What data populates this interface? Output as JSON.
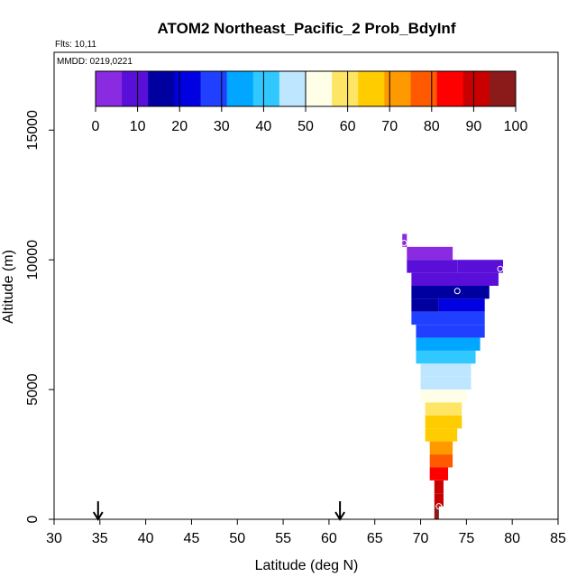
{
  "chart_data": {
    "type": "heatmap",
    "title": "ATOM2 Northeast_Pacific_2 Prob_BdyInf",
    "flights_text": "Flts: 10,11",
    "mmdd_text": "MMDD: 0219,0221",
    "xlabel": "Latitude (deg N)",
    "ylabel": "Altitude (m)",
    "xlim": [
      30,
      85
    ],
    "ylim": [
      0,
      18000
    ],
    "x_ticks": [
      "30",
      "35",
      "40",
      "45",
      "50",
      "55",
      "60",
      "65",
      "70",
      "75",
      "80",
      "85"
    ],
    "y_ticks": [
      "0",
      "5000",
      "10000",
      "15000"
    ],
    "colorbar": {
      "range": [
        0,
        100
      ],
      "ticks": [
        "0",
        "10",
        "20",
        "30",
        "40",
        "50",
        "60",
        "70",
        "80",
        "90",
        "100"
      ],
      "colors": [
        "#8a2be2",
        "#5a0fd8",
        "#0000a0",
        "#0000e0",
        "#2040ff",
        "#00a6ff",
        "#30c8ff",
        "#bfe6ff",
        "#ffffe8",
        "#ffe566",
        "#ffcc00",
        "#ff9900",
        "#ff5a00",
        "#ff0000",
        "#c80000",
        "#8b1a1a"
      ]
    },
    "flight_markers_lat": [
      34.8,
      61.2
    ],
    "cell_width_deg": 0.5,
    "cell_height_m": 500,
    "rows": [
      {
        "alt": 10750,
        "segments": [
          [
            68.0,
            68.5,
            2
          ]
        ]
      },
      {
        "alt": 10250,
        "segments": [
          [
            68.5,
            73.5,
            6
          ]
        ]
      },
      {
        "alt": 9750,
        "segments": [
          [
            68.5,
            74.0,
            9
          ],
          [
            74.0,
            79.0,
            10
          ]
        ]
      },
      {
        "alt": 9250,
        "segments": [
          [
            69.0,
            78.5,
            11
          ]
        ]
      },
      {
        "alt": 8750,
        "segments": [
          [
            69.0,
            77.5,
            14
          ]
        ]
      },
      {
        "alt": 8250,
        "segments": [
          [
            69.0,
            72.0,
            18
          ],
          [
            72.0,
            77.0,
            20
          ]
        ]
      },
      {
        "alt": 7750,
        "segments": [
          [
            69.0,
            77.0,
            25
          ]
        ]
      },
      {
        "alt": 7250,
        "segments": [
          [
            69.5,
            77.0,
            30
          ]
        ]
      },
      {
        "alt": 6750,
        "segments": [
          [
            69.5,
            76.5,
            35
          ]
        ]
      },
      {
        "alt": 6250,
        "segments": [
          [
            69.5,
            76.0,
            39
          ]
        ]
      },
      {
        "alt": 5750,
        "segments": [
          [
            70.0,
            75.5,
            44
          ]
        ]
      },
      {
        "alt": 5250,
        "segments": [
          [
            70.0,
            75.5,
            49
          ]
        ]
      },
      {
        "alt": 4750,
        "segments": [
          [
            70.0,
            75.0,
            53
          ]
        ]
      },
      {
        "alt": 4250,
        "segments": [
          [
            70.5,
            74.5,
            58
          ]
        ]
      },
      {
        "alt": 3750,
        "segments": [
          [
            70.5,
            74.5,
            64
          ]
        ]
      },
      {
        "alt": 3250,
        "segments": [
          [
            70.5,
            74.0,
            68
          ]
        ]
      },
      {
        "alt": 2750,
        "segments": [
          [
            71.0,
            73.5,
            74
          ]
        ]
      },
      {
        "alt": 2250,
        "segments": [
          [
            71.0,
            73.5,
            80
          ]
        ]
      },
      {
        "alt": 1750,
        "segments": [
          [
            71.0,
            73.0,
            86
          ]
        ]
      },
      {
        "alt": 1250,
        "segments": [
          [
            71.5,
            72.5,
            90
          ]
        ]
      },
      {
        "alt": 750,
        "segments": [
          [
            71.5,
            72.5,
            93
          ]
        ]
      },
      {
        "alt": 250,
        "segments": [
          [
            71.5,
            72.0,
            96
          ]
        ]
      }
    ],
    "circle_markers": [
      {
        "lat": 68.2,
        "alt": 10650
      },
      {
        "lat": 74.0,
        "alt": 8800
      },
      {
        "lat": 78.7,
        "alt": 9650
      },
      {
        "lat": 72.0,
        "alt": 500
      }
    ]
  }
}
